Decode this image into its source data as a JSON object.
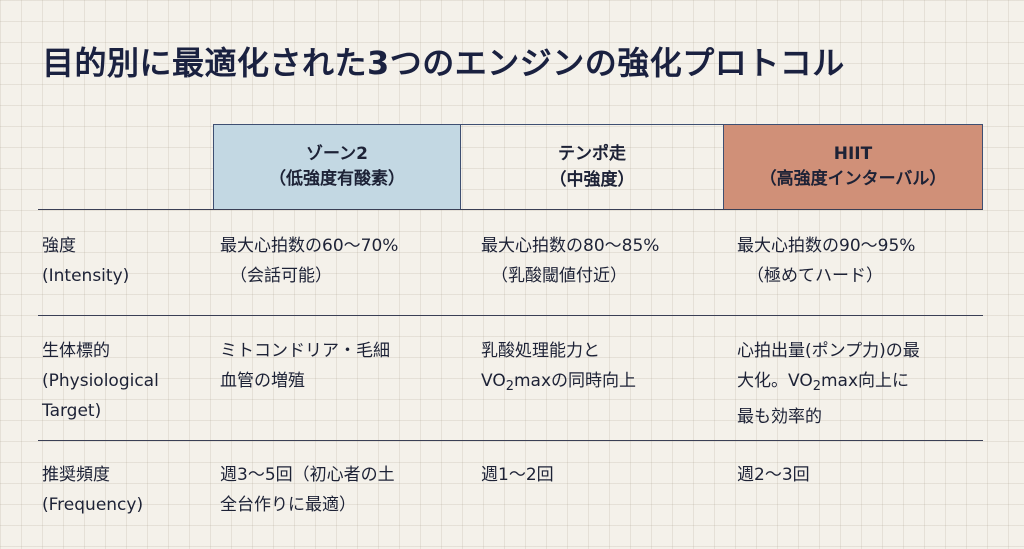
{
  "title": "目的別に最適化された3つのエンジンの強化プロトコル",
  "columns": [
    {
      "name": "ゾーン2",
      "subtitle": "（低強度有酸素）",
      "color": "#c3d8e3"
    },
    {
      "name": "テンポ走",
      "subtitle": "（中強度）",
      "color": "#f4f1ea"
    },
    {
      "name": "HIIT",
      "subtitle": "（高強度インターバル）",
      "color": "#d09078"
    }
  ],
  "rows": [
    {
      "label": "強度",
      "label_en": "(Intensity)",
      "cells": [
        {
          "main": "最大心拍数の60〜70%",
          "note": "（会話可能）"
        },
        {
          "main": "最大心拍数の80〜85%",
          "note": "（乳酸閾値付近）"
        },
        {
          "main": "最大心拍数の90〜95%",
          "note": "（極めてハード）"
        }
      ]
    },
    {
      "label": "生体標的",
      "label_en_line1": "(Physiological",
      "label_en_line2": "Target)",
      "cells": [
        {
          "line1": "ミトコンドリア・毛細",
          "line2": "血管の増殖"
        },
        {
          "line1": "乳酸処理能力と",
          "line2_pre": "VO",
          "line2_sub": "2",
          "line2_post": "maxの同時向上"
        },
        {
          "line1": "心拍出量(ポンプ力)の最",
          "line2_pre": "大化。VO",
          "line2_sub": "2",
          "line2_post": "max向上に",
          "line3": "最も効率的"
        }
      ]
    },
    {
      "label": "推奨頻度",
      "label_en": "(Frequency)",
      "cells": [
        {
          "line1": "週3〜5回（初心者の土",
          "line2": "全台作りに最適）"
        },
        {
          "line1": "週1〜2回"
        },
        {
          "line1": "週2〜3回"
        }
      ]
    }
  ]
}
